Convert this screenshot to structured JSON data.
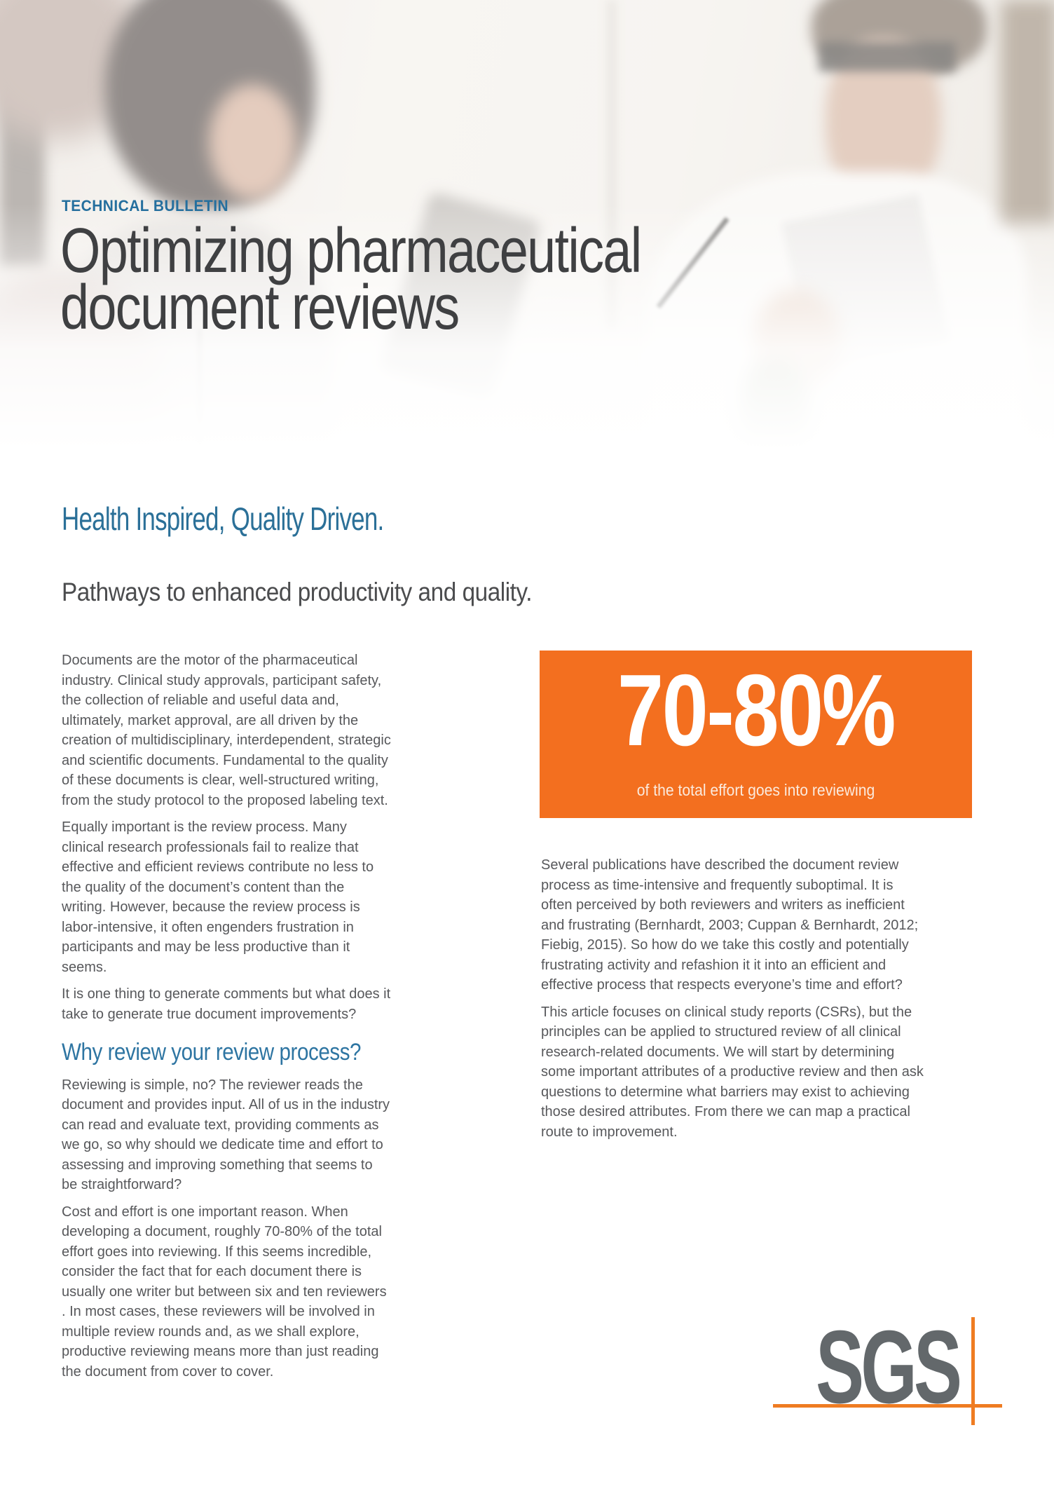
{
  "header": {
    "kicker": "TECHNICAL BULLETIN",
    "title_line1": "Optimizing pharmaceutical",
    "title_line2": "document reviews",
    "tagline": "Health Inspired, Quality Driven.",
    "section_title": "Pathways to enhanced productivity and quality."
  },
  "left_column": {
    "paragraphs": [
      "Documents are the motor of the pharmaceutical industry. Clinical study approvals, participant safety, the collection of reliable and useful data and, ultimately, market approval, are all driven by the creation of multidisciplinary, interdependent, strategic and scientific documents. Fundamental to the quality of these documents is clear, well-structured writing, from the study protocol to the proposed labeling text.",
      "Equally important is the review process. Many clinical research professionals fail to realize that effective and efficient reviews contribute no less to the quality of the document’s content than the writing. However, because the review process is labor-intensive, it often engenders frustration in participants and may be less productive than it seems.",
      "It is one thing to generate comments but what does it take to generate true document improvements?"
    ],
    "heading": "Why review your review process?",
    "paragraphs_after": [
      "Reviewing is simple, no? The reviewer reads the document and provides input. All of us in the industry can read and evaluate text, providing comments as we go, so why should we dedicate time and effort to assessing and improving something that seems to be straightforward?",
      "Cost and effort is one important reason. When developing a document, roughly 70-80% of the total effort goes into reviewing.  If this seems incredible, consider the fact that for each document there is usually one writer but between six and ten reviewers . In most cases, these reviewers will be involved in multiple review rounds and, as we shall explore, productive reviewing means more than just reading the document from cover to cover."
    ]
  },
  "callout": {
    "stat": "70-80%",
    "caption": "of the total effort goes into reviewing",
    "background_color": "#f36f1f"
  },
  "right_column": {
    "paragraphs": [
      "Several publications have described the document review process as time-intensive and frequently suboptimal. It is often perceived by both reviewers and writers as inefficient and frustrating (Bernhardt, 2003; Cuppan & Bernhardt, 2012; Fiebig, 2015). So how do we take this costly and potentially frustrating activity and refashion it it into an efficient and effective process that respects everyone’s time and effort?",
      "This article focuses on clinical study reports (CSRs), but the principles can be applied to structured review of all clinical research-related documents. We will start by determining some important attributes of a productive review and then ask questions to determine what barriers may exist to achieving those desired attributes. From there we can map a practical route to improvement."
    ]
  },
  "footer": {
    "logo_text": "SGS"
  },
  "colors": {
    "accent_blue": "#2b7098",
    "heading_blue": "#2e75a2",
    "kicker_blue": "#256f9e",
    "accent_orange": "#f36f1f",
    "logo_gray": "#63686b",
    "logo_orange": "#ef7c22",
    "title_gray": "#3f4042",
    "body_gray": "#57585b"
  }
}
